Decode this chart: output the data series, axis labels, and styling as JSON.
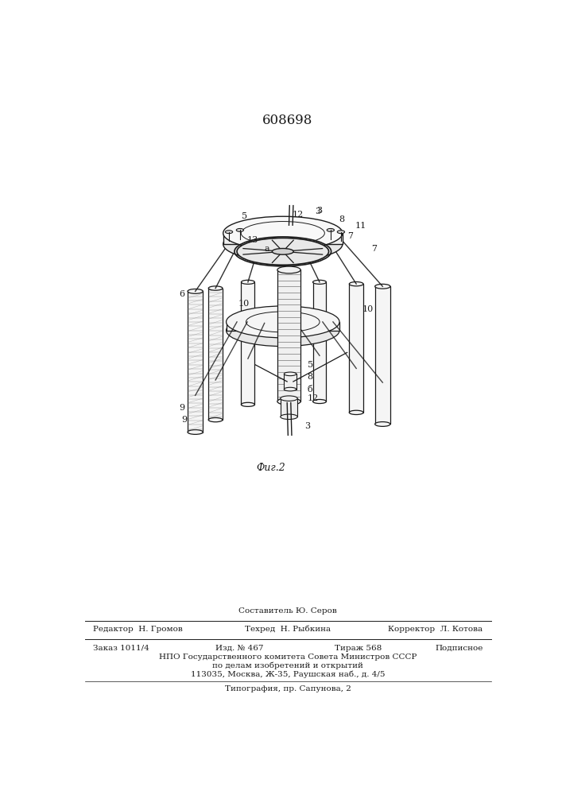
{
  "patent_number": "608698",
  "figure_caption": "Фиг.2",
  "bg_color": "#ffffff",
  "line_color": "#1a1a1a",
  "footer_line0_center": "Составитель Ю. Серов",
  "footer_line1_left": "Редактор  Н. Громов",
  "footer_line1_center": "Техред  Н. Рыбкина",
  "footer_line1_right": "Корректор  Л. Котова",
  "footer_line2_left": "Заказ 1011/4",
  "footer_line2_center_a": "Изд. № 467",
  "footer_line2_center_b": "Тираж 568",
  "footer_line2_right": "Подписное",
  "footer_line3": "НПО Государственного комитета Совета Министров СССР",
  "footer_line4": "по делам изобретений и открытий",
  "footer_line5": "113035, Москва, Ж-35, Раушская наб., д. 4/5",
  "footer_line6": "Типография, пр. Сапунова, 2"
}
